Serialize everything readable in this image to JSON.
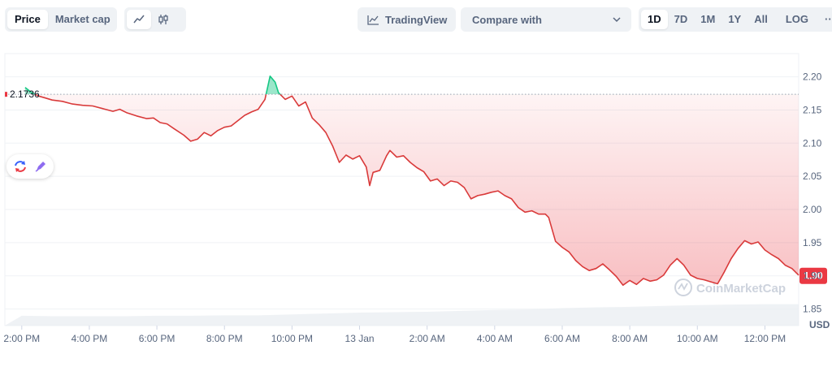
{
  "toolbar": {
    "price_tab": "Price",
    "market_cap_tab": "Market cap",
    "line_icon": "line-chart-icon",
    "candle_icon": "candlestick-icon",
    "tradingview_label": "TradingView",
    "compare_label": "Compare with",
    "ranges": [
      "1D",
      "7D",
      "1M",
      "1Y",
      "All"
    ],
    "active_range": "1D",
    "log_label": "LOG",
    "more_label": "···"
  },
  "watermark": "CoinMarketCap",
  "colors": {
    "down": "#d93a3a",
    "up": "#16c784",
    "badge": "#ea3943",
    "grid": "#eff2f5",
    "axis_text": "#58667e"
  },
  "chart_data": {
    "type": "area",
    "ylabel": "USD",
    "ylim": [
      1.825,
      2.235
    ],
    "yticks": [
      "2.20",
      "2.15",
      "2.10",
      "2.05",
      "2.00",
      "1.95",
      "1.90",
      "1.85"
    ],
    "xlim": [
      13.5,
      37.0
    ],
    "xticks": [
      {
        "t": 14,
        "label": "2:00 PM"
      },
      {
        "t": 16,
        "label": "4:00 PM"
      },
      {
        "t": 18,
        "label": "6:00 PM"
      },
      {
        "t": 20,
        "label": "8:00 PM"
      },
      {
        "t": 22,
        "label": "10:00 PM"
      },
      {
        "t": 24,
        "label": "13 Jan"
      },
      {
        "t": 26,
        "label": "2:00 AM"
      },
      {
        "t": 28,
        "label": "4:00 AM"
      },
      {
        "t": 30,
        "label": "6:00 AM"
      },
      {
        "t": 32,
        "label": "8:00 AM"
      },
      {
        "t": 34,
        "label": "10:00 AM"
      },
      {
        "t": 36,
        "label": "12:00 PM"
      }
    ],
    "reference_price": 2.1736,
    "reference_label": "2.1736",
    "current_price": 1.9,
    "current_label": "1.90",
    "series": [
      {
        "values": [
          [
            14.1,
            2.184
          ],
          [
            14.3,
            2.176
          ],
          [
            14.5,
            2.171
          ],
          [
            14.7,
            2.168
          ],
          [
            14.9,
            2.165
          ],
          [
            15.2,
            2.163
          ],
          [
            15.5,
            2.159
          ],
          [
            15.8,
            2.157
          ],
          [
            16.1,
            2.156
          ],
          [
            16.4,
            2.152
          ],
          [
            16.7,
            2.148
          ],
          [
            16.9,
            2.151
          ],
          [
            17.1,
            2.146
          ],
          [
            17.4,
            2.141
          ],
          [
            17.7,
            2.137
          ],
          [
            17.9,
            2.138
          ],
          [
            18.1,
            2.131
          ],
          [
            18.3,
            2.129
          ],
          [
            18.5,
            2.122
          ],
          [
            18.8,
            2.112
          ],
          [
            19.0,
            2.103
          ],
          [
            19.2,
            2.106
          ],
          [
            19.4,
            2.116
          ],
          [
            19.6,
            2.111
          ],
          [
            19.8,
            2.119
          ],
          [
            20.0,
            2.124
          ],
          [
            20.2,
            2.126
          ],
          [
            20.4,
            2.134
          ],
          [
            20.6,
            2.142
          ],
          [
            20.8,
            2.147
          ],
          [
            21.0,
            2.151
          ],
          [
            21.2,
            2.166
          ],
          [
            21.35,
            2.201
          ],
          [
            21.5,
            2.192
          ],
          [
            21.6,
            2.176
          ],
          [
            21.8,
            2.166
          ],
          [
            22.0,
            2.171
          ],
          [
            22.2,
            2.156
          ],
          [
            22.4,
            2.162
          ],
          [
            22.6,
            2.138
          ],
          [
            22.8,
            2.128
          ],
          [
            23.0,
            2.116
          ],
          [
            23.2,
            2.096
          ],
          [
            23.4,
            2.071
          ],
          [
            23.6,
            2.082
          ],
          [
            23.8,
            2.076
          ],
          [
            24.0,
            2.081
          ],
          [
            24.2,
            2.064
          ],
          [
            24.3,
            2.036
          ],
          [
            24.4,
            2.056
          ],
          [
            24.6,
            2.059
          ],
          [
            24.8,
            2.081
          ],
          [
            24.9,
            2.089
          ],
          [
            25.1,
            2.079
          ],
          [
            25.3,
            2.081
          ],
          [
            25.5,
            2.071
          ],
          [
            25.7,
            2.063
          ],
          [
            25.9,
            2.057
          ],
          [
            26.1,
            2.043
          ],
          [
            26.3,
            2.046
          ],
          [
            26.5,
            2.036
          ],
          [
            26.7,
            2.043
          ],
          [
            26.9,
            2.041
          ],
          [
            27.1,
            2.033
          ],
          [
            27.3,
            2.016
          ],
          [
            27.5,
            2.021
          ],
          [
            27.7,
            2.023
          ],
          [
            27.9,
            2.026
          ],
          [
            28.1,
            2.028
          ],
          [
            28.3,
            2.021
          ],
          [
            28.5,
            2.016
          ],
          [
            28.7,
            2.003
          ],
          [
            28.9,
            1.996
          ],
          [
            29.1,
            1.998
          ],
          [
            29.3,
            1.993
          ],
          [
            29.5,
            1.993
          ],
          [
            29.6,
            1.988
          ],
          [
            29.8,
            1.952
          ],
          [
            30.0,
            1.943
          ],
          [
            30.2,
            1.936
          ],
          [
            30.4,
            1.923
          ],
          [
            30.6,
            1.914
          ],
          [
            30.8,
            1.908
          ],
          [
            31.0,
            1.911
          ],
          [
            31.2,
            1.918
          ],
          [
            31.4,
            1.909
          ],
          [
            31.6,
            1.899
          ],
          [
            31.8,
            1.886
          ],
          [
            32.0,
            1.893
          ],
          [
            32.2,
            1.887
          ],
          [
            32.4,
            1.896
          ],
          [
            32.6,
            1.892
          ],
          [
            32.8,
            1.894
          ],
          [
            33.0,
            1.901
          ],
          [
            33.2,
            1.916
          ],
          [
            33.4,
            1.926
          ],
          [
            33.6,
            1.916
          ],
          [
            33.8,
            1.901
          ],
          [
            34.0,
            1.896
          ],
          [
            34.2,
            1.894
          ],
          [
            34.4,
            1.891
          ],
          [
            34.6,
            1.888
          ],
          [
            34.8,
            1.906
          ],
          [
            35.0,
            1.926
          ],
          [
            35.2,
            1.941
          ],
          [
            35.4,
            1.953
          ],
          [
            35.6,
            1.948
          ],
          [
            35.8,
            1.951
          ],
          [
            36.0,
            1.939
          ],
          [
            36.2,
            1.932
          ],
          [
            36.4,
            1.926
          ],
          [
            36.6,
            1.916
          ],
          [
            36.8,
            1.911
          ],
          [
            37.0,
            1.901
          ]
        ]
      }
    ],
    "volume": {
      "values": [
        [
          14.0,
          22
        ],
        [
          15.0,
          21
        ],
        [
          16.0,
          21
        ],
        [
          17.0,
          21
        ],
        [
          18.0,
          22
        ],
        [
          19.0,
          22
        ],
        [
          20.0,
          23
        ],
        [
          21.0,
          23
        ],
        [
          22.0,
          25
        ],
        [
          23.0,
          27
        ],
        [
          24.0,
          29
        ],
        [
          25.0,
          30
        ],
        [
          26.0,
          31
        ],
        [
          27.0,
          33
        ],
        [
          28.0,
          35
        ],
        [
          29.0,
          36
        ],
        [
          30.0,
          39
        ],
        [
          31.0,
          41
        ],
        [
          32.0,
          42
        ],
        [
          33.0,
          44
        ],
        [
          34.0,
          46
        ],
        [
          35.0,
          47
        ],
        [
          36.0,
          48
        ],
        [
          37.0,
          48
        ]
      ]
    }
  }
}
